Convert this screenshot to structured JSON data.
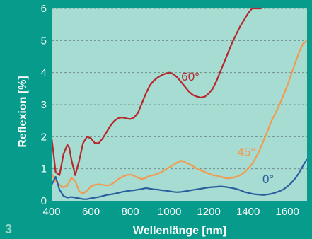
{
  "figure_number": "3",
  "colors": {
    "page_background": "#069b8a",
    "plot_background": "#a7dcd2",
    "grid": "#6f8f8b",
    "text": "#ffffff"
  },
  "chart_data": {
    "type": "line",
    "xlabel": "Wellenlänge [nm]",
    "ylabel": "Reflexion [%]",
    "xlim": [
      400,
      1700
    ],
    "ylim": [
      0,
      6
    ],
    "x_ticks": [
      400,
      600,
      800,
      1000,
      1200,
      1400,
      1600
    ],
    "y_ticks": [
      0,
      1,
      2,
      3,
      4,
      5,
      6
    ],
    "grid": "horizontal dashed",
    "series": [
      {
        "name": "60°",
        "color": "#b5282c",
        "label_position": [
          1060,
          3.75
        ],
        "x": [
          400,
          410,
          420,
          440,
          460,
          480,
          490,
          500,
          520,
          540,
          560,
          580,
          600,
          620,
          640,
          660,
          680,
          700,
          720,
          740,
          760,
          780,
          800,
          820,
          840,
          860,
          880,
          900,
          920,
          940,
          960,
          980,
          1000,
          1020,
          1040,
          1060,
          1080,
          1100,
          1120,
          1140,
          1160,
          1180,
          1200,
          1220,
          1240,
          1260,
          1280,
          1300,
          1320,
          1340,
          1360,
          1380,
          1400,
          1420,
          1440,
          1460,
          1468
        ],
        "y": [
          1.95,
          1.45,
          0.9,
          0.8,
          1.45,
          1.75,
          1.65,
          1.3,
          0.8,
          1.25,
          1.8,
          2.0,
          1.95,
          1.8,
          1.8,
          1.95,
          2.15,
          2.35,
          2.5,
          2.58,
          2.6,
          2.57,
          2.55,
          2.6,
          2.75,
          3.05,
          3.35,
          3.6,
          3.75,
          3.85,
          3.92,
          3.97,
          4.0,
          3.95,
          3.85,
          3.7,
          3.55,
          3.4,
          3.3,
          3.25,
          3.22,
          3.25,
          3.35,
          3.5,
          3.75,
          4.05,
          4.35,
          4.65,
          4.95,
          5.2,
          5.45,
          5.65,
          5.85,
          6.0,
          6.0,
          6.0,
          6.0
        ]
      },
      {
        "name": "45°",
        "color": "#f29a4e",
        "label_position": [
          1345,
          1.4
        ],
        "x": [
          400,
          420,
          440,
          460,
          480,
          500,
          520,
          540,
          560,
          580,
          600,
          620,
          640,
          660,
          680,
          700,
          720,
          740,
          760,
          780,
          800,
          820,
          840,
          860,
          880,
          900,
          920,
          940,
          960,
          980,
          1000,
          1020,
          1040,
          1060,
          1080,
          1100,
          1120,
          1140,
          1160,
          1180,
          1200,
          1220,
          1240,
          1260,
          1280,
          1300,
          1320,
          1340,
          1360,
          1380,
          1400,
          1420,
          1440,
          1460,
          1480,
          1500,
          1520,
          1540,
          1560,
          1580,
          1600,
          1620,
          1640,
          1660,
          1680,
          1700
        ],
        "y": [
          0.85,
          0.6,
          0.5,
          0.42,
          0.48,
          0.72,
          0.62,
          0.3,
          0.22,
          0.32,
          0.45,
          0.5,
          0.52,
          0.5,
          0.48,
          0.5,
          0.58,
          0.68,
          0.75,
          0.8,
          0.82,
          0.78,
          0.72,
          0.68,
          0.72,
          0.78,
          0.8,
          0.85,
          0.9,
          0.98,
          1.05,
          1.12,
          1.2,
          1.25,
          1.2,
          1.15,
          1.08,
          1.0,
          0.95,
          0.9,
          0.85,
          0.8,
          0.78,
          0.75,
          0.72,
          0.7,
          0.72,
          0.75,
          0.8,
          0.88,
          1.0,
          1.15,
          1.35,
          1.6,
          1.9,
          2.2,
          2.5,
          2.75,
          3.0,
          3.3,
          3.6,
          3.95,
          4.3,
          4.65,
          4.9,
          5.0
        ]
      },
      {
        "name": "0°",
        "color": "#2a5f9f",
        "label_position": [
          1473,
          0.55
        ],
        "x": [
          400,
          420,
          440,
          460,
          480,
          500,
          520,
          540,
          560,
          580,
          600,
          620,
          640,
          660,
          680,
          700,
          720,
          740,
          760,
          780,
          800,
          820,
          840,
          860,
          880,
          900,
          920,
          940,
          960,
          980,
          1000,
          1020,
          1040,
          1060,
          1080,
          1100,
          1120,
          1140,
          1160,
          1180,
          1200,
          1220,
          1240,
          1260,
          1280,
          1300,
          1320,
          1340,
          1360,
          1380,
          1400,
          1420,
          1440,
          1460,
          1480,
          1500,
          1520,
          1540,
          1560,
          1580,
          1600,
          1620,
          1640,
          1660,
          1680,
          1700
        ],
        "y": [
          0.5,
          0.75,
          0.35,
          0.15,
          0.1,
          0.12,
          0.1,
          0.08,
          0.05,
          0.05,
          0.08,
          0.1,
          0.12,
          0.15,
          0.18,
          0.2,
          0.22,
          0.25,
          0.28,
          0.3,
          0.32,
          0.33,
          0.35,
          0.37,
          0.4,
          0.38,
          0.36,
          0.35,
          0.33,
          0.32,
          0.3,
          0.28,
          0.27,
          0.28,
          0.3,
          0.32,
          0.34,
          0.36,
          0.38,
          0.4,
          0.42,
          0.43,
          0.44,
          0.45,
          0.44,
          0.42,
          0.4,
          0.37,
          0.33,
          0.28,
          0.25,
          0.22,
          0.2,
          0.19,
          0.18,
          0.2,
          0.22,
          0.26,
          0.3,
          0.36,
          0.45,
          0.56,
          0.7,
          0.88,
          1.1,
          1.3
        ]
      }
    ]
  }
}
